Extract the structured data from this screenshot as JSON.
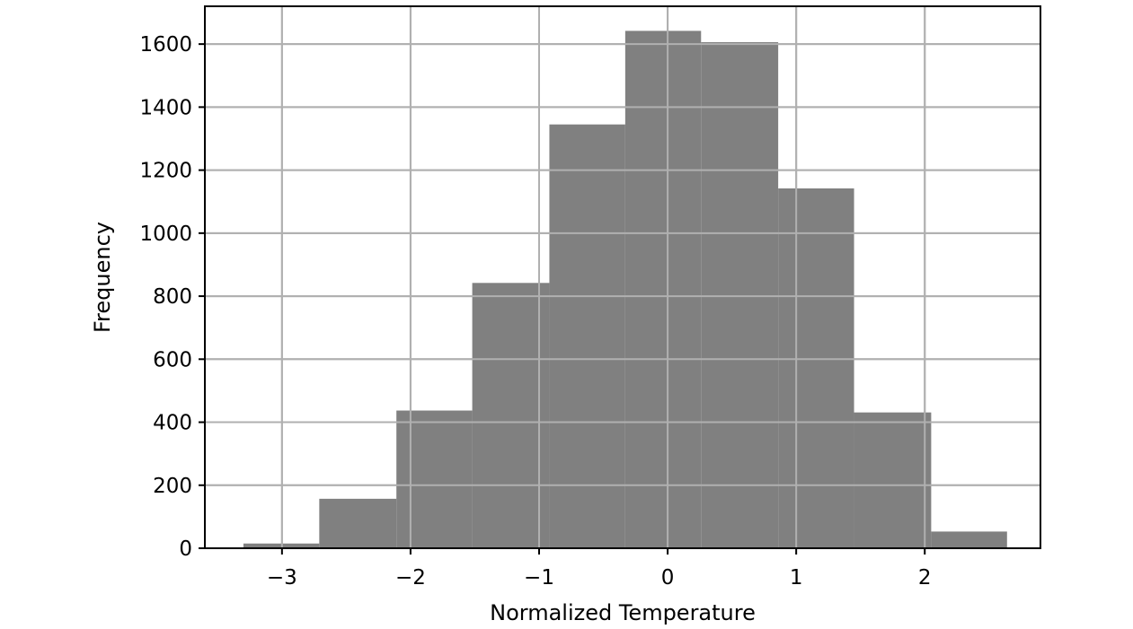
{
  "chart_data": {
    "type": "bar",
    "subtype": "histogram",
    "title": "",
    "xlabel": "Normalized Temperature",
    "ylabel": "Frequency",
    "xlim": [
      -3.6,
      2.9
    ],
    "ylim": [
      0,
      1720
    ],
    "grid": true,
    "legend": "none",
    "x_ticks": [
      -3,
      -2,
      -1,
      0,
      1,
      2
    ],
    "x_tick_labels": [
      "−3",
      "−2",
      "−1",
      "0",
      "1",
      "2"
    ],
    "y_ticks": [
      0,
      200,
      400,
      600,
      800,
      1000,
      1200,
      1400,
      1600
    ],
    "y_tick_labels": [
      "0",
      "200",
      "400",
      "600",
      "800",
      "1000",
      "1200",
      "1400",
      "1600"
    ],
    "bin_edges": [
      -3.3,
      -2.71,
      -2.11,
      -1.52,
      -0.92,
      -0.33,
      0.26,
      0.86,
      1.45,
      2.05,
      2.64
    ],
    "values": [
      15,
      157,
      437,
      842,
      1345,
      1642,
      1606,
      1142,
      431,
      53
    ],
    "colors": {
      "bar": "#808080",
      "grid": "#b0b0b0",
      "axis": "#000000"
    }
  }
}
